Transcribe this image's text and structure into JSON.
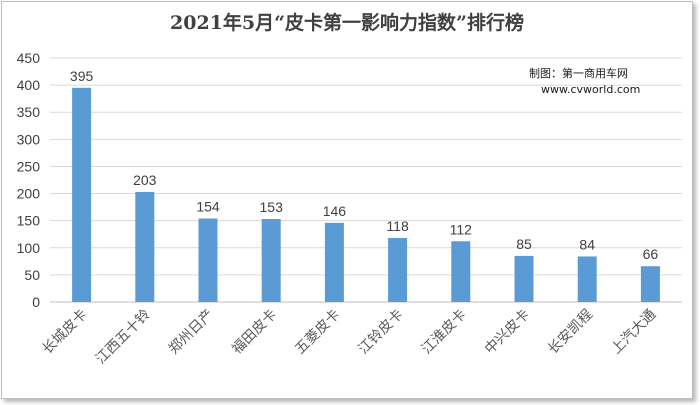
{
  "chart_data": {
    "type": "bar",
    "title": "2021年5月“皮卡第一影响力指数”排行榜",
    "categories": [
      "长城皮卡",
      "江西五十铃",
      "郑州日产",
      "福田皮卡",
      "五菱皮卡",
      "江铃皮卡",
      "江淮皮卡",
      "中兴皮卡",
      "长安凯程",
      "上汽大通"
    ],
    "values": [
      395,
      203,
      154,
      153,
      146,
      118,
      112,
      85,
      84,
      66
    ],
    "ylim": [
      0,
      450
    ],
    "yticks": [
      0,
      50,
      100,
      150,
      200,
      250,
      300,
      350,
      400,
      450
    ],
    "grid": true,
    "bar_color": "#5b9bd5",
    "xlabel": "",
    "ylabel": ""
  },
  "source": {
    "line1": "制图：第一商用车网",
    "line2": "www.cvworld.com"
  }
}
